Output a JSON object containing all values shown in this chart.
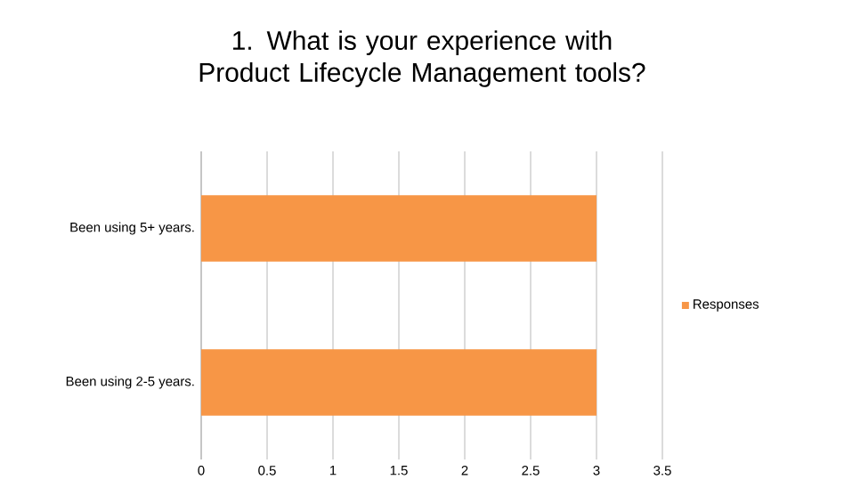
{
  "chart_data": {
    "type": "bar",
    "orientation": "horizontal",
    "title": "1. What is your experience with Product Lifecycle Management tools?",
    "categories": [
      "Been using 5+ years.",
      "Been using 2-5 years."
    ],
    "series": [
      {
        "name": "Responses",
        "color": "#f79646",
        "values": [
          3,
          3
        ]
      }
    ],
    "xlim": [
      0,
      3.5
    ],
    "xticks": [
      0,
      0.5,
      1,
      1.5,
      2,
      2.5,
      3,
      3.5
    ],
    "grid": "x",
    "legend": "right"
  }
}
